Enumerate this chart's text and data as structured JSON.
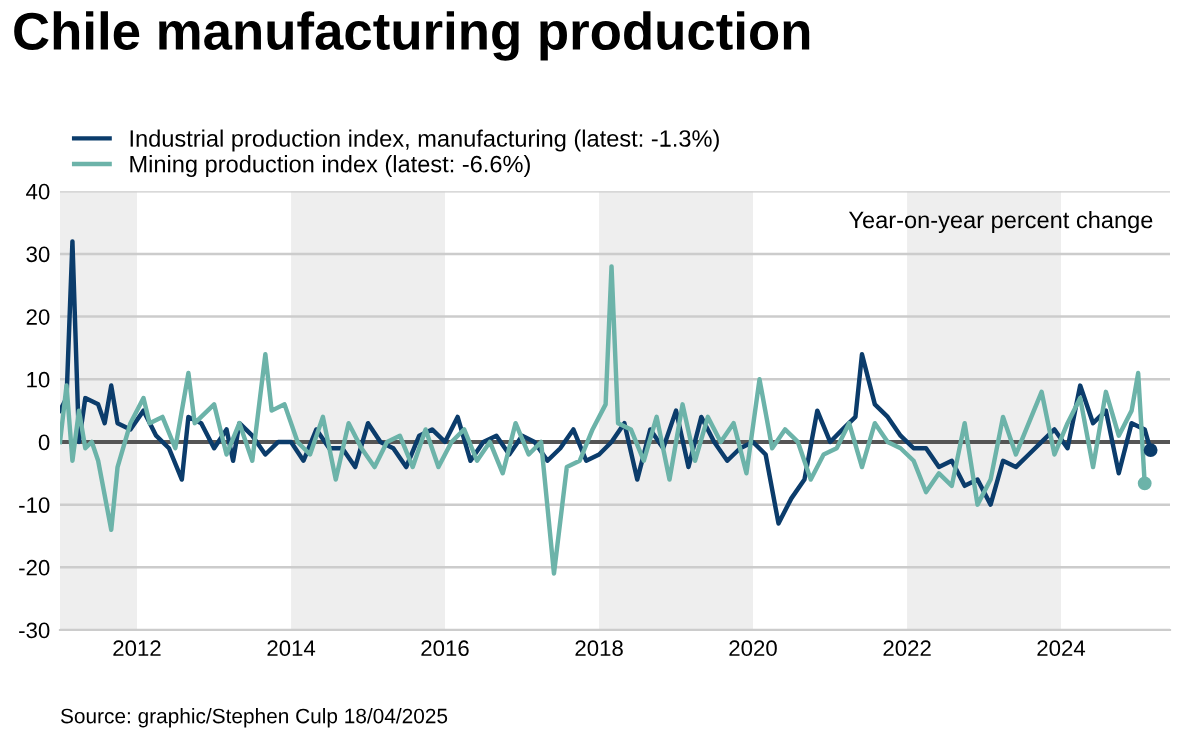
{
  "chart_data": {
    "type": "line",
    "title": "Chile manufacturing production",
    "annotations": [
      "Year-on-year percent change",
      "Source: graphic/Stephen Culp 18/04/2025"
    ],
    "legend": "top left",
    "grid": "y",
    "marker": "none",
    "line_style": "solid",
    "xlim": [
      "2011-01",
      "2025-06"
    ],
    "xticks": [
      {
        "value": "2012-01",
        "label": "2012"
      },
      {
        "value": "2014-01",
        "label": "2014"
      },
      {
        "value": "2016-01",
        "label": "2016"
      },
      {
        "value": "2018-01",
        "label": "2018"
      },
      {
        "value": "2020-01",
        "label": "2020"
      },
      {
        "value": "2022-01",
        "label": "2022"
      },
      {
        "value": "2024-01",
        "label": "2024"
      }
    ],
    "ylim": [
      -30,
      40
    ],
    "yticks": [
      -30,
      -20,
      -10,
      0,
      10,
      20,
      30,
      40
    ],
    "ref_lines": [
      {
        "axis": "y",
        "value": 0,
        "color": "#555555"
      }
    ],
    "bands": [
      {
        "axis": "x",
        "from": "2011-01",
        "to": "2012-01",
        "color": "#eeeeee"
      },
      {
        "axis": "x",
        "from": "2014-01",
        "to": "2016-01",
        "color": "#eeeeee"
      },
      {
        "axis": "x",
        "from": "2018-01",
        "to": "2020-01",
        "color": "#eeeeee"
      },
      {
        "axis": "x",
        "from": "2022-01",
        "to": "2024-01",
        "color": "#eeeeee"
      }
    ],
    "series": [
      {
        "name": "Industrial production index, manufacturing (latest: -1.3%)",
        "color": "#0b3c6b",
        "x": [
          "2011-01",
          "2011-02",
          "2011-03",
          "2011-04",
          "2011-05",
          "2011-07",
          "2011-08",
          "2011-09",
          "2011-10",
          "2011-12",
          "2012-02",
          "2012-04",
          "2012-06",
          "2012-08",
          "2012-09",
          "2012-11",
          "2013-01",
          "2013-03",
          "2013-04",
          "2013-05",
          "2013-07",
          "2013-09",
          "2013-11",
          "2014-01",
          "2014-03",
          "2014-05",
          "2014-07",
          "2014-09",
          "2014-11",
          "2015-01",
          "2015-03",
          "2015-05",
          "2015-07",
          "2015-09",
          "2015-11",
          "2016-01",
          "2016-03",
          "2016-05",
          "2016-07",
          "2016-09",
          "2016-11",
          "2017-01",
          "2017-03",
          "2017-05",
          "2017-07",
          "2017-09",
          "2017-11",
          "2018-01",
          "2018-03",
          "2018-05",
          "2018-07",
          "2018-09",
          "2018-11",
          "2019-01",
          "2019-03",
          "2019-05",
          "2019-07",
          "2019-09",
          "2019-11",
          "2020-01",
          "2020-03",
          "2020-05",
          "2020-07",
          "2020-09",
          "2020-11",
          "2021-01",
          "2021-03",
          "2021-05",
          "2021-06",
          "2021-08",
          "2021-10",
          "2021-12",
          "2022-02",
          "2022-04",
          "2022-06",
          "2022-08",
          "2022-10",
          "2022-12",
          "2023-02",
          "2023-04",
          "2023-06",
          "2023-08",
          "2023-10",
          "2023-12",
          "2024-02",
          "2024-04",
          "2024-06",
          "2024-08",
          "2024-10",
          "2024-12",
          "2025-02",
          "2025-03"
        ],
        "values": [
          5,
          7,
          32,
          0,
          7,
          6,
          3,
          9,
          3,
          2,
          5,
          1,
          -1,
          -6,
          4,
          3,
          -1,
          2,
          -3,
          3,
          1,
          -2,
          0,
          0,
          -3,
          2,
          -1,
          -1,
          -4,
          3,
          0,
          -1,
          -4,
          1,
          2,
          0,
          4,
          -3,
          0,
          1,
          -2,
          1,
          0,
          -3,
          -1,
          2,
          -3,
          -2,
          0,
          3,
          -6,
          2,
          -1,
          5,
          -4,
          4,
          0,
          -3,
          -1,
          0,
          -2,
          -13,
          -9,
          -6,
          5,
          0,
          2,
          4,
          14,
          6,
          4,
          1,
          -1,
          -1,
          -4,
          -3,
          -7,
          -6,
          -10,
          -3,
          -4,
          -2,
          0,
          2,
          -1,
          9,
          3,
          5,
          -5,
          3,
          2,
          -1.3
        ]
      },
      {
        "name": "Mining production index (latest: -6.6%)",
        "color": "#6cb3a9",
        "x": [
          "2011-01",
          "2011-02",
          "2011-03",
          "2011-04",
          "2011-05",
          "2011-06",
          "2011-07",
          "2011-09",
          "2011-10",
          "2011-12",
          "2012-02",
          "2012-03",
          "2012-05",
          "2012-07",
          "2012-09",
          "2012-10",
          "2013-01",
          "2013-03",
          "2013-05",
          "2013-07",
          "2013-09",
          "2013-10",
          "2013-12",
          "2014-02",
          "2014-04",
          "2014-06",
          "2014-08",
          "2014-10",
          "2014-12",
          "2015-02",
          "2015-04",
          "2015-06",
          "2015-08",
          "2015-10",
          "2015-12",
          "2016-02",
          "2016-04",
          "2016-06",
          "2016-08",
          "2016-10",
          "2016-12",
          "2017-02",
          "2017-04",
          "2017-06",
          "2017-08",
          "2017-10",
          "2017-12",
          "2018-02",
          "2018-03",
          "2018-04",
          "2018-06",
          "2018-08",
          "2018-10",
          "2018-12",
          "2019-02",
          "2019-04",
          "2019-06",
          "2019-08",
          "2019-10",
          "2019-12",
          "2020-02",
          "2020-04",
          "2020-06",
          "2020-08",
          "2020-10",
          "2020-12",
          "2021-02",
          "2021-04",
          "2021-06",
          "2021-08",
          "2021-10",
          "2021-12",
          "2022-02",
          "2022-04",
          "2022-06",
          "2022-08",
          "2022-10",
          "2022-12",
          "2023-02",
          "2023-04",
          "2023-06",
          "2023-08",
          "2023-10",
          "2023-12",
          "2024-02",
          "2024-04",
          "2024-06",
          "2024-08",
          "2024-10",
          "2024-12",
          "2025-01",
          "2025-02"
        ],
        "values": [
          0,
          9,
          -3,
          5,
          -1,
          0,
          -3,
          -14,
          -4,
          3,
          7,
          3,
          4,
          -1,
          11,
          3,
          6,
          -2,
          3,
          -3,
          14,
          5,
          6,
          0,
          -2,
          4,
          -6,
          3,
          -1,
          -4,
          0,
          1,
          -4,
          2,
          -4,
          0,
          2,
          -3,
          0,
          -5,
          3,
          -2,
          0,
          -21,
          -4,
          -3,
          2,
          6,
          28,
          3,
          2,
          -3,
          4,
          -6,
          6,
          -3,
          4,
          0,
          3,
          -5,
          10,
          -1,
          2,
          0,
          -6,
          -2,
          -1,
          3,
          -4,
          3,
          0,
          -1,
          -3,
          -8,
          -5,
          -7,
          3,
          -10,
          -6,
          4,
          -2,
          3,
          8,
          -2,
          3,
          7,
          -4,
          8,
          1,
          5,
          11,
          -6.6
        ]
      }
    ]
  }
}
